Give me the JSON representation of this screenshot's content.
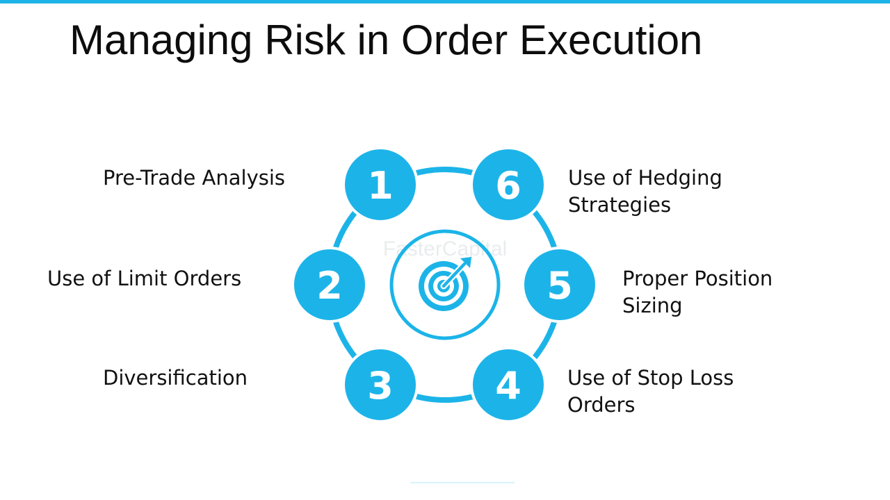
{
  "title": "Managing Risk in Order Execution",
  "colors": {
    "accent": "#1cb4e8",
    "text": "#111111",
    "background": "#ffffff"
  },
  "center": {
    "icon": "target-arrow-icon",
    "watermark": "FasterCapital"
  },
  "steps": [
    {
      "number": "1",
      "label": "Pre-Trade Analysis"
    },
    {
      "number": "2",
      "label": "Use of Limit Orders"
    },
    {
      "number": "3",
      "label": "Diversification"
    },
    {
      "number": "4",
      "label": "Use of Stop Loss Orders"
    },
    {
      "number": "5",
      "label": "Proper Position Sizing"
    },
    {
      "number": "6",
      "label": "Use of Hedging Strategies"
    }
  ]
}
